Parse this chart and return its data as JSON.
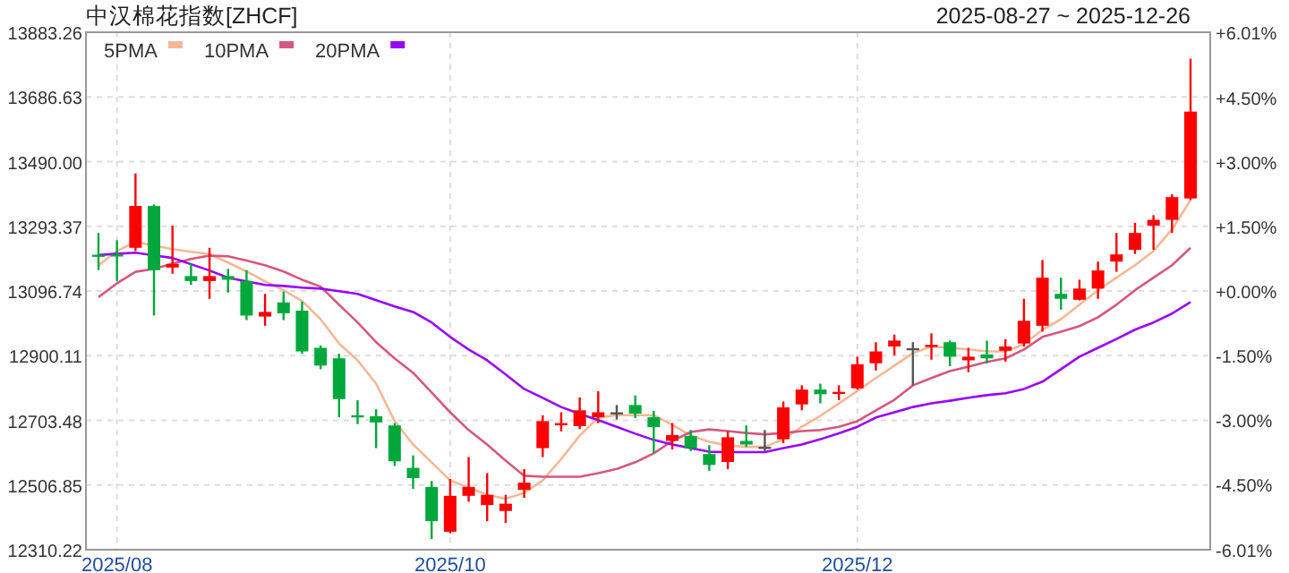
{
  "chart_data": {
    "type": "candlestick",
    "title": "中汉棉花指数[ZHCF]",
    "subtitle": "2025-08-27 ~ 2025-12-26",
    "categories": [
      null,
      "2025/08",
      null,
      null,
      null,
      null,
      null,
      null,
      null,
      null,
      null,
      null,
      null,
      null,
      null,
      null,
      null,
      null,
      null,
      "2025/10",
      null,
      null,
      null,
      null,
      null,
      null,
      null,
      null,
      null,
      null,
      null,
      null,
      null,
      null,
      null,
      null,
      null,
      null,
      null,
      null,
      null,
      "2025/12",
      null,
      null,
      null,
      null,
      null,
      null,
      null,
      null,
      null,
      null,
      null,
      null,
      null,
      null,
      null,
      null,
      null,
      null
    ],
    "ohlc": [
      [
        13207,
        13273,
        13160,
        13204
      ],
      [
        13208,
        13251,
        13127,
        13203
      ],
      [
        13228,
        13454,
        13218,
        13355
      ],
      [
        13355,
        13360,
        13022,
        13160
      ],
      [
        13168,
        13295,
        13149,
        13179
      ],
      [
        13142,
        13182,
        13115,
        13127
      ],
      [
        13127,
        13228,
        13073,
        13142
      ],
      [
        13142,
        13164,
        13092,
        13131
      ],
      [
        13127,
        13160,
        13008,
        13022
      ],
      [
        13019,
        13088,
        12991,
        13033
      ],
      [
        13062,
        13095,
        13008,
        13029
      ],
      [
        13037,
        13064,
        12906,
        12913
      ],
      [
        12924,
        12931,
        12859,
        12870
      ],
      [
        12892,
        12906,
        12713,
        12768
      ],
      [
        12719,
        12765,
        12692,
        12716
      ],
      [
        12716,
        12737,
        12619,
        12697
      ],
      [
        12688,
        12695,
        12565,
        12579
      ],
      [
        12559,
        12597,
        12495,
        12528
      ],
      [
        12501,
        12519,
        12343,
        12397
      ],
      [
        12365,
        12525,
        12360,
        12474
      ],
      [
        12474,
        12592,
        12456,
        12501
      ],
      [
        12446,
        12543,
        12397,
        12477
      ],
      [
        12428,
        12477,
        12392,
        12450
      ],
      [
        12492,
        12555,
        12468,
        12514
      ],
      [
        12619,
        12719,
        12592,
        12701
      ],
      [
        12692,
        12728,
        12670,
        12695
      ],
      [
        12686,
        12773,
        12677,
        12734
      ],
      [
        12713,
        12792,
        12695,
        12728
      ],
      [
        12728,
        12750,
        12706,
        12728
      ],
      [
        12750,
        12779,
        12710,
        12724
      ],
      [
        12713,
        12732,
        12604,
        12683
      ],
      [
        12641,
        12695,
        12615,
        12659
      ],
      [
        12656,
        12674,
        12610,
        12619
      ],
      [
        12601,
        12628,
        12550,
        12568
      ],
      [
        12577,
        12670,
        12555,
        12652
      ],
      [
        12641,
        12688,
        12623,
        12630
      ],
      [
        12623,
        12674,
        12610,
        12623
      ],
      [
        12646,
        12761,
        12634,
        12743
      ],
      [
        12752,
        12810,
        12734,
        12797
      ],
      [
        12797,
        12815,
        12755,
        12783
      ],
      [
        12786,
        12810,
        12765,
        12790
      ],
      [
        12801,
        12897,
        12797,
        12874
      ],
      [
        12877,
        12941,
        12855,
        12913
      ],
      [
        12928,
        12964,
        12901,
        12946
      ],
      [
        12923,
        12941,
        12810,
        12923
      ],
      [
        12930,
        12968,
        12888,
        12933
      ],
      [
        12941,
        12946,
        12868,
        12897
      ],
      [
        12886,
        12924,
        12850,
        12897
      ],
      [
        12904,
        12946,
        12877,
        12892
      ],
      [
        12915,
        12950,
        12882,
        12928
      ],
      [
        12937,
        13073,
        12928,
        13006
      ],
      [
        12991,
        13191,
        12973,
        13137
      ],
      [
        13088,
        13137,
        13040,
        13073
      ],
      [
        13070,
        13131,
        13068,
        13104
      ],
      [
        13104,
        13186,
        13073,
        13159
      ],
      [
        13186,
        13273,
        13155,
        13208
      ],
      [
        13222,
        13304,
        13209,
        13273
      ],
      [
        13295,
        13327,
        13222,
        13313
      ],
      [
        13313,
        13391,
        13273,
        13382
      ],
      [
        13378,
        13803,
        13373,
        13642
      ]
    ],
    "colors": [
      "#00a83c",
      "#00a83c",
      "#ff0000",
      "#00a83c",
      "#ff0000",
      "#00a83c",
      "#ff0000",
      "#00a83c",
      "#00a83c",
      "#ff0000",
      "#00a83c",
      "#00a83c",
      "#00a83c",
      "#00a83c",
      "#00a83c",
      "#00a83c",
      "#00a83c",
      "#00a83c",
      "#00a83c",
      "#ff0000",
      "#ff0000",
      "#ff0000",
      "#ff0000",
      "#ff0000",
      "#ff0000",
      "#ff0000",
      "#ff0000",
      "#ff0000",
      "#555555",
      "#00a83c",
      "#00a83c",
      "#ff0000",
      "#00a83c",
      "#00a83c",
      "#ff0000",
      "#00a83c",
      "#555555",
      "#ff0000",
      "#ff0000",
      "#00a83c",
      "#ff0000",
      "#ff0000",
      "#ff0000",
      "#ff0000",
      "#555555",
      "#ff0000",
      "#00a83c",
      "#ff0000",
      "#00a83c",
      "#ff0000",
      "#ff0000",
      "#ff0000",
      "#00a83c",
      "#ff0000",
      "#ff0000",
      "#ff0000",
      "#ff0000",
      "#ff0000",
      "#ff0000",
      "#ff0000"
    ],
    "series": [
      {
        "name": "5PMA",
        "type": "line",
        "color": "#f5b895",
        "values": [
          13175,
          13218,
          13246,
          13235,
          13224,
          13216,
          13209,
          13183,
          13156,
          13126,
          13099,
          13066,
          13011,
          12937,
          12886,
          12815,
          12701,
          12630,
          12576,
          12521,
          12499,
          12477,
          12465,
          12483,
          12521,
          12586,
          12657,
          12712,
          12719,
          12719,
          12719,
          12690,
          12657,
          12638,
          12627,
          12623,
          12623,
          12646,
          12684,
          12717,
          12755,
          12793,
          12832,
          12870,
          12908,
          12928,
          12924,
          12919,
          12913,
          12913,
          12935,
          12979,
          13011,
          13055,
          13099,
          13137,
          13175,
          13218,
          13284,
          13373
        ]
      },
      {
        "name": "10PMA",
        "type": "line",
        "color": "#d6577f",
        "values": [
          13078,
          13120,
          13155,
          13164,
          13180,
          13194,
          13204,
          13202,
          13189,
          13175,
          13156,
          13131,
          13110,
          13055,
          13001,
          12941,
          12892,
          12848,
          12788,
          12728,
          12674,
          12630,
          12581,
          12535,
          12532,
          12532,
          12532,
          12543,
          12556,
          12576,
          12603,
          12641,
          12668,
          12676,
          12671,
          12665,
          12661,
          12665,
          12671,
          12674,
          12684,
          12701,
          12734,
          12766,
          12810,
          12832,
          12853,
          12867,
          12881,
          12892,
          12919,
          12957,
          12973,
          12990,
          13017,
          13055,
          13099,
          13137,
          13175,
          13228
        ]
      },
      {
        "name": "20PMA",
        "type": "line",
        "color": "#9900ff",
        "values": [
          13206,
          13210,
          13213,
          13205,
          13197,
          13178,
          13159,
          13137,
          13126,
          13115,
          13112,
          13107,
          13104,
          13096,
          13088,
          13069,
          13050,
          13033,
          13001,
          12957,
          12919,
          12886,
          12843,
          12799,
          12772,
          12744,
          12723,
          12704,
          12684,
          12663,
          12644,
          12630,
          12619,
          12608,
          12607,
          12607,
          12607,
          12619,
          12630,
          12646,
          12664,
          12684,
          12712,
          12728,
          12744,
          12755,
          12763,
          12772,
          12780,
          12786,
          12799,
          12821,
          12859,
          12897,
          12924,
          12951,
          12979,
          13001,
          13028,
          13063
        ]
      }
    ],
    "ylim": [
      12310.22,
      13883.26
    ],
    "yticks": [
      12310.22,
      12506.85,
      12703.48,
      12900.11,
      13096.74,
      13293.37,
      {
        "value": 13490,
        "label": "13490.00"
      },
      13686.63,
      13883.26
    ],
    "y2lim": [
      -6.01,
      6.01
    ],
    "y2ticks": [
      {
        "value": -6.01,
        "label": "-6.01%"
      },
      {
        "value": -4.5,
        "label": "-4.50%"
      },
      {
        "value": -3,
        "label": "-3.00%"
      },
      {
        "value": -1.5,
        "label": "-1.50%"
      },
      {
        "value": 0,
        "label": "+0.00%"
      },
      {
        "value": 1.5,
        "label": "+1.50%"
      },
      {
        "value": 3,
        "label": "+3.00%"
      },
      {
        "value": 4.5,
        "label": "+4.50%"
      },
      {
        "value": 6.01,
        "label": "+6.01%"
      }
    ],
    "grid": true,
    "legend": "top left"
  }
}
